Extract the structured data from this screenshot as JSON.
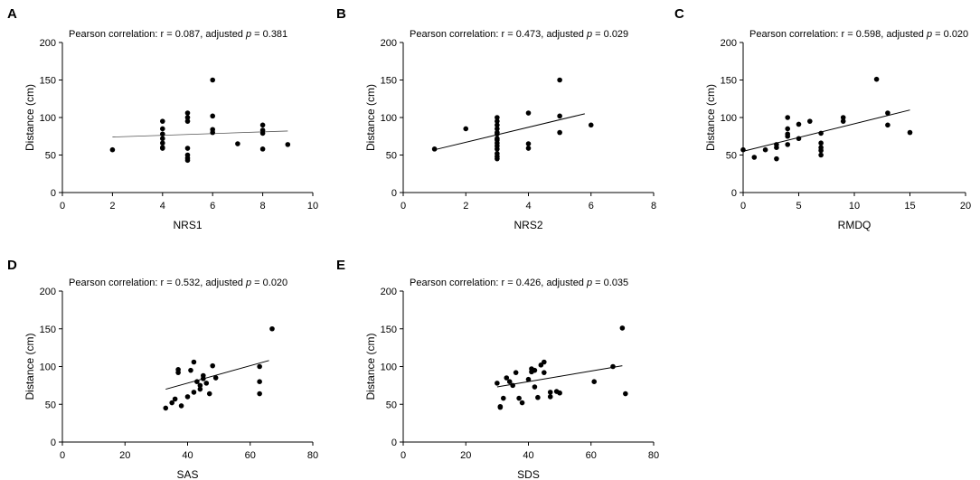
{
  "chart_data": [
    {
      "panel": "A",
      "type": "scatter",
      "annotation": {
        "prefix": "Pearson correlation: r = 0.087, adjusted ",
        "p_symbol": "p",
        "suffix": " = 0.381"
      },
      "xlabel": "NRS1",
      "ylabel": "Distance (cm)",
      "xlim": [
        0,
        10
      ],
      "ylim": [
        0,
        200
      ],
      "xticks": [
        0,
        2,
        4,
        6,
        8,
        10
      ],
      "yticks": [
        0,
        50,
        100,
        150,
        200
      ],
      "fit": {
        "x": [
          2,
          9
        ],
        "y": [
          74,
          82
        ],
        "style": "light"
      },
      "x": [
        2,
        4,
        4,
        4,
        4,
        4,
        4,
        4,
        5,
        5,
        5,
        5,
        5,
        5,
        5,
        6,
        6,
        6,
        6,
        7,
        8,
        8,
        8,
        8,
        9
      ],
      "y": [
        57,
        95,
        85,
        78,
        72,
        66,
        60,
        59,
        106,
        100,
        95,
        59,
        50,
        46,
        43,
        150,
        102,
        84,
        80,
        65,
        90,
        83,
        79,
        58,
        64
      ]
    },
    {
      "panel": "B",
      "type": "scatter",
      "annotation": {
        "prefix": "Pearson correlation: r = 0.473, adjusted ",
        "p_symbol": "p",
        "suffix": " = 0.029"
      },
      "xlabel": "NRS2",
      "ylabel": "Distance (cm)",
      "xlim": [
        0,
        8
      ],
      "ylim": [
        0,
        200
      ],
      "xticks": [
        0,
        2,
        4,
        6,
        8
      ],
      "yticks": [
        0,
        50,
        100,
        150,
        200
      ],
      "fit": {
        "x": [
          1,
          5.8
        ],
        "y": [
          57,
          105
        ],
        "style": "solid"
      },
      "x": [
        1,
        2,
        3,
        3,
        3,
        3,
        3,
        3,
        3,
        3,
        3,
        3,
        3,
        3,
        3,
        3,
        4,
        4,
        4,
        5,
        5,
        5,
        6
      ],
      "y": [
        58,
        85,
        100,
        95,
        90,
        85,
        80,
        78,
        72,
        66,
        62,
        58,
        52,
        48,
        45,
        70,
        106,
        65,
        59,
        150,
        102,
        80,
        90
      ]
    },
    {
      "panel": "C",
      "type": "scatter",
      "annotation": {
        "prefix": "Pearson correlation: r = 0.598, adjusted ",
        "p_symbol": "p",
        "suffix": " = 0.020"
      },
      "xlabel": "RMDQ",
      "ylabel": "Distance (cm)",
      "xlim": [
        0,
        20
      ],
      "ylim": [
        0,
        200
      ],
      "xticks": [
        0,
        5,
        10,
        15,
        20
      ],
      "yticks": [
        0,
        50,
        100,
        150,
        200
      ],
      "fit": {
        "x": [
          0,
          15
        ],
        "y": [
          55,
          110
        ],
        "style": "solid"
      },
      "x": [
        0,
        1,
        2,
        3,
        3,
        3,
        4,
        4,
        4,
        4,
        4,
        5,
        5,
        6,
        7,
        7,
        7,
        7,
        7,
        9,
        9,
        12,
        13,
        13,
        15
      ],
      "y": [
        57,
        47,
        57,
        45,
        60,
        64,
        100,
        85,
        78,
        75,
        64,
        91,
        72,
        95,
        79,
        66,
        60,
        56,
        50,
        100,
        95,
        151,
        106,
        90,
        80
      ]
    },
    {
      "panel": "D",
      "type": "scatter",
      "annotation": {
        "prefix": "Pearson correlation: r = 0.532, adjusted ",
        "p_symbol": "p",
        "suffix": " = 0.020"
      },
      "xlabel": "SAS",
      "ylabel": "Distance (cm)",
      "xlim": [
        0,
        80
      ],
      "ylim": [
        0,
        200
      ],
      "xticks": [
        0,
        20,
        40,
        60,
        80
      ],
      "yticks": [
        0,
        50,
        100,
        150,
        200
      ],
      "fit": {
        "x": [
          33,
          66
        ],
        "y": [
          70,
          108
        ],
        "style": "solid"
      },
      "x": [
        33,
        35,
        36,
        37,
        37,
        38,
        40,
        41,
        42,
        42,
        43,
        44,
        44,
        45,
        45,
        46,
        47,
        48,
        49,
        63,
        63,
        63,
        67
      ],
      "y": [
        45,
        52,
        57,
        92,
        96,
        48,
        60,
        95,
        106,
        66,
        80,
        75,
        70,
        84,
        88,
        78,
        64,
        101,
        85,
        100,
        80,
        64,
        150
      ]
    },
    {
      "panel": "E",
      "type": "scatter",
      "annotation": {
        "prefix": "Pearson correlation: r = 0.426, adjusted ",
        "p_symbol": "p",
        "suffix": " = 0.035"
      },
      "xlabel": "SDS",
      "ylabel": "Distance (cm)",
      "xlim": [
        0,
        80
      ],
      "ylim": [
        0,
        200
      ],
      "xticks": [
        0,
        20,
        40,
        60,
        80
      ],
      "yticks": [
        0,
        50,
        100,
        150,
        200
      ],
      "fit": {
        "x": [
          30,
          70
        ],
        "y": [
          73,
          101
        ],
        "style": "solid"
      },
      "x": [
        30,
        31,
        31,
        32,
        33,
        34,
        35,
        36,
        37,
        38,
        40,
        41,
        41,
        42,
        42,
        43,
        44,
        45,
        45,
        47,
        47,
        49,
        50,
        61,
        67,
        70,
        71
      ],
      "y": [
        78,
        46,
        47,
        58,
        85,
        80,
        75,
        92,
        58,
        52,
        83,
        93,
        97,
        95,
        73,
        59,
        102,
        106,
        92,
        60,
        66,
        67,
        65,
        80,
        100,
        151,
        64
      ]
    }
  ]
}
